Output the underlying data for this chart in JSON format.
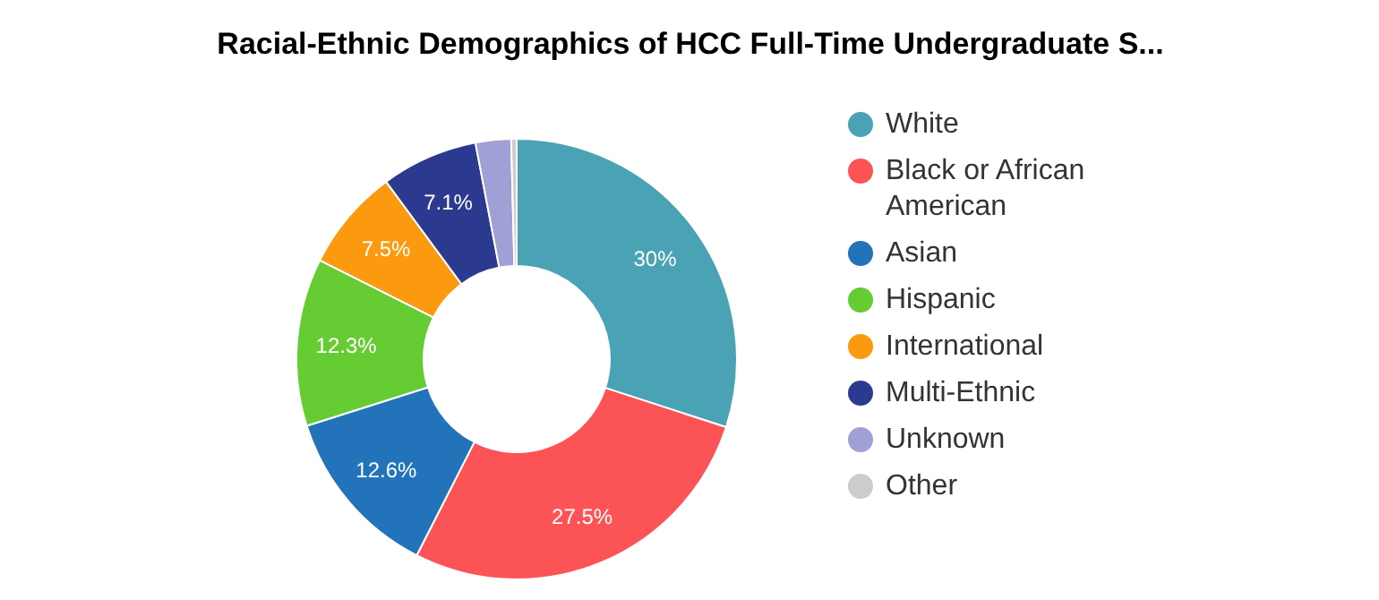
{
  "chart_data": {
    "type": "donut",
    "title": "Racial-Ethnic Demographics of HCC Full-Time Undergraduate S...",
    "categories": [
      "White",
      "Black or African American",
      "Asian",
      "Hispanic",
      "International",
      "Multi-Ethnic",
      "Unknown",
      "Other"
    ],
    "values": [
      30,
      27.5,
      12.6,
      12.3,
      7.5,
      7.1,
      2.6,
      0.4
    ],
    "colors": [
      "#4aa3b5",
      "#fc5357",
      "#2273b9",
      "#66cc33",
      "#fb9a0e",
      "#2b3a8e",
      "#a09fd6",
      "#cccccc"
    ],
    "value_labels": [
      "30%",
      "27.5%",
      "12.6%",
      "12.3%",
      "7.5%",
      "7.1%",
      null,
      null
    ],
    "legend": "right"
  }
}
